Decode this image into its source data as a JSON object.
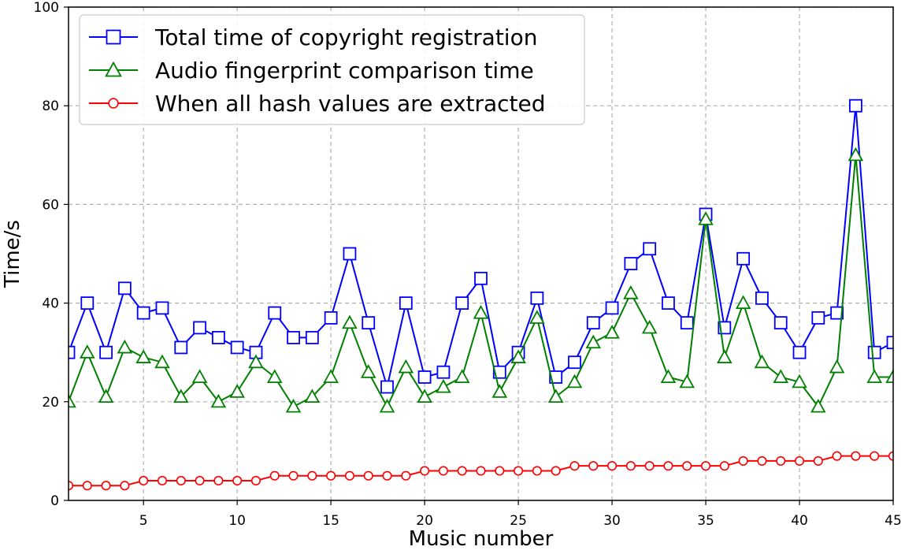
{
  "chart_data": {
    "type": "line",
    "title": "",
    "xlabel": "Music number",
    "ylabel": "Time/s",
    "xlim": [
      1,
      45
    ],
    "ylim": [
      0,
      100
    ],
    "xticks": [
      5,
      10,
      15,
      20,
      25,
      30,
      35,
      40,
      45
    ],
    "yticks": [
      0,
      20,
      40,
      60,
      80,
      100
    ],
    "grid": true,
    "legend_position": "top-left",
    "x": [
      1,
      2,
      3,
      4,
      5,
      6,
      7,
      8,
      9,
      10,
      11,
      12,
      13,
      14,
      15,
      16,
      17,
      18,
      19,
      20,
      21,
      22,
      23,
      24,
      25,
      26,
      27,
      28,
      29,
      30,
      31,
      32,
      33,
      34,
      35,
      36,
      37,
      38,
      39,
      40,
      41,
      42,
      43,
      44,
      45
    ],
    "series": [
      {
        "name": "Total time of copyright registration",
        "color": "#0000ff",
        "marker": "square",
        "values": [
          30,
          40,
          30,
          43,
          38,
          39,
          31,
          35,
          33,
          31,
          30,
          38,
          33,
          33,
          37,
          50,
          36,
          23,
          40,
          25,
          26,
          40,
          45,
          26,
          30,
          41,
          25,
          28,
          36,
          39,
          48,
          51,
          40,
          36,
          58,
          35,
          49,
          41,
          36,
          30,
          37,
          38,
          80,
          30,
          32
        ]
      },
      {
        "name": "Audio fingerprint comparison time",
        "color": "#008000",
        "marker": "triangle",
        "values": [
          20,
          30,
          21,
          31,
          29,
          28,
          21,
          25,
          20,
          22,
          28,
          25,
          19,
          21,
          25,
          36,
          26,
          19,
          27,
          21,
          23,
          25,
          38,
          22,
          29,
          37,
          21,
          24,
          32,
          34,
          42,
          35,
          25,
          24,
          57,
          29,
          40,
          28,
          25,
          24,
          19,
          27,
          70,
          25,
          25
        ]
      },
      {
        "name": "When all hash values are extracted",
        "color": "#ff0000",
        "marker": "circle",
        "values": [
          3,
          3,
          3,
          3,
          4,
          4,
          4,
          4,
          4,
          4,
          4,
          5,
          5,
          5,
          5,
          5,
          5,
          5,
          5,
          6,
          6,
          6,
          6,
          6,
          6,
          6,
          6,
          7,
          7,
          7,
          7,
          7,
          7,
          7,
          7,
          7,
          8,
          8,
          8,
          8,
          8,
          9,
          9,
          9,
          9
        ]
      }
    ]
  }
}
